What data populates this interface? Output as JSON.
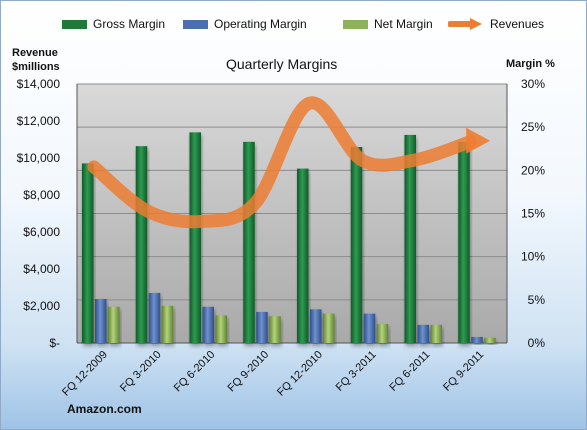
{
  "chart_data": {
    "type": "bar",
    "title": "Quarterly Margins",
    "ylabel_left": "Revenue\n$millions",
    "ylabel_right": "Margin %",
    "categories": [
      "FQ 12-2009",
      "FQ 3-2010",
      "FQ 6-2010",
      "FQ 9-2010",
      "FQ 12-2010",
      "FQ 3-2011",
      "FQ 6-2011",
      "FQ 9-2011"
    ],
    "series": [
      {
        "name": "Gross Margin",
        "axis": "right",
        "color": "#1f7a3a",
        "values": [
          20.8,
          22.8,
          24.4,
          23.3,
          20.2,
          22.7,
          24.1,
          23.3
        ]
      },
      {
        "name": "Operating Margin",
        "axis": "right",
        "color": "#4a6fb0",
        "values": [
          5.1,
          5.8,
          4.2,
          3.6,
          3.9,
          3.4,
          2.1,
          0.7
        ]
      },
      {
        "name": "Net Margin",
        "axis": "right",
        "color": "#8db35a",
        "values": [
          4.2,
          4.3,
          3.2,
          3.1,
          3.4,
          2.2,
          2.1,
          0.6
        ]
      },
      {
        "name": "Revenues",
        "axis": "left",
        "type": "line",
        "color": "#ed7d31",
        "values": [
          9520,
          7130,
          6570,
          7560,
          12950,
          9860,
          9910,
          10880
        ]
      }
    ],
    "ylim_left": [
      0,
      14000
    ],
    "ylim_right": [
      0,
      30
    ],
    "left_ticks": [
      "$-",
      "$2,000",
      "$4,000",
      "$6,000",
      "$8,000",
      "$10,000",
      "$12,000",
      "$14,000"
    ],
    "right_ticks": [
      "0%",
      "5%",
      "10%",
      "15%",
      "20%",
      "25%",
      "30%"
    ],
    "legend": "top",
    "grid": true
  },
  "legend_items": [
    {
      "label": "Gross Margin",
      "color": "#1f7a3a"
    },
    {
      "label": "Operating Margin",
      "color": "#4a6fb0"
    },
    {
      "label": "Net Margin",
      "color": "#8db35a"
    },
    {
      "label": "Revenues",
      "color": "#ed7d31"
    }
  ],
  "source_label": "Amazon.com"
}
